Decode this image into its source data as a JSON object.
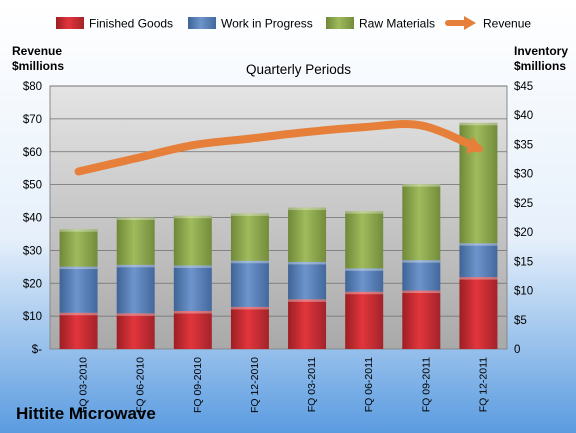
{
  "chart_data": {
    "type": "bar",
    "company": "Hittite Microwave",
    "subtitle": "Quarterly Periods",
    "left_axis_title": [
      "Revenue",
      "$millions"
    ],
    "right_axis_title": [
      "Inventory",
      "$millions"
    ],
    "categories": [
      "FQ 03-2010",
      "FQ 06-2010",
      "FQ 09-2010",
      "FQ 12-2010",
      "FQ 03-2011",
      "FQ 06-2011",
      "FQ 09-2011",
      "FQ 12-2011"
    ],
    "left_ticks": [
      "$-",
      "$10",
      "$20",
      "$30",
      "$40",
      "$50",
      "$60",
      "$70",
      "$80"
    ],
    "right_ticks": [
      "0",
      "$5",
      "$10",
      "$15",
      "$20",
      "$25",
      "$30",
      "$35",
      "$40",
      "$45"
    ],
    "ylim_left": [
      0,
      80
    ],
    "ylim_right": [
      0,
      45
    ],
    "grid": true,
    "legend_placement": "top",
    "stacked_axis": "right",
    "series": [
      {
        "name": "Finished Goods",
        "color": "#c0282e",
        "values": [
          6.2,
          6.1,
          6.5,
          7.2,
          8.5,
          9.8,
          10.0,
          12.3
        ]
      },
      {
        "name": "Work in Progress",
        "color": "#4f79b4",
        "values": [
          7.9,
          8.3,
          7.8,
          7.9,
          6.4,
          4.0,
          5.2,
          5.8
        ]
      },
      {
        "name": "Raw Materials",
        "color": "#88a34a",
        "values": [
          6.4,
          8.1,
          8.5,
          8.1,
          9.3,
          9.8,
          13.0,
          20.6
        ]
      }
    ],
    "line": {
      "name": "Revenue",
      "color": "#e57f3a",
      "values": [
        54,
        58,
        62,
        64,
        66,
        67.5,
        68,
        61
      ]
    }
  }
}
